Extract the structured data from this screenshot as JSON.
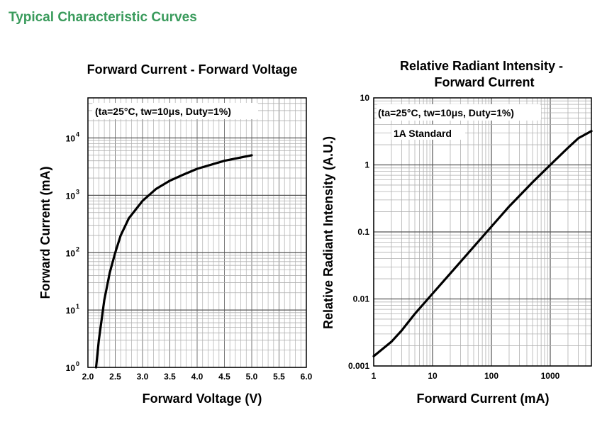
{
  "header": {
    "title": "Typical Characteristic Curves"
  },
  "chart_data": [
    {
      "type": "line",
      "title": "Forward Current - Forward Voltage",
      "xlabel": "Forward Voltage (V)",
      "ylabel": "Forward Current (mA)",
      "xscale": "linear",
      "yscale": "log",
      "xlim": [
        2.0,
        6.0
      ],
      "ylim": [
        1,
        50000
      ],
      "xticks": [
        "2.0",
        "2.5",
        "3.0",
        "3.5",
        "4.0",
        "4.5",
        "5.0",
        "5.5",
        "6.0"
      ],
      "yticks": [
        {
          "base": "10",
          "exp": "0",
          "value": 1
        },
        {
          "base": "10",
          "exp": "1",
          "value": 10
        },
        {
          "base": "10",
          "exp": "2",
          "value": 100
        },
        {
          "base": "10",
          "exp": "3",
          "value": 1000
        },
        {
          "base": "10",
          "exp": "4",
          "value": 10000
        }
      ],
      "annotation": "(ta=25°C, tw=10μs, Duty=1%)",
      "grid": true,
      "color": "#000000",
      "series": [
        {
          "x": [
            2.15,
            2.2,
            2.3,
            2.4,
            2.5,
            2.6,
            2.75,
            3.0,
            3.25,
            3.5,
            3.75,
            4.0,
            4.5,
            5.0
          ],
          "y": [
            1,
            3,
            15,
            45,
            100,
            200,
            400,
            800,
            1300,
            1800,
            2300,
            2900,
            4000,
            5000
          ]
        }
      ]
    },
    {
      "type": "line",
      "title": "Relative Radiant Intensity - Forward Current",
      "xlabel": "Forward Current (mA)",
      "ylabel": "Relative Radiant Intensity (A.U.)",
      "xscale": "log",
      "yscale": "log",
      "xlim": [
        1,
        5000
      ],
      "ylim": [
        0.001,
        10
      ],
      "xticks": [
        "1",
        "10",
        "100",
        "1000"
      ],
      "yticks": [
        "10",
        "1",
        "0.1",
        "0.01",
        "0.001"
      ],
      "annotation": "(ta=25°C, tw=10μs, Duty=1%)",
      "annotation2": "1A Standard",
      "grid": true,
      "color": "#000000",
      "series": [
        {
          "x": [
            1,
            2,
            3,
            5,
            10,
            20,
            50,
            100,
            200,
            500,
            1000,
            2000,
            3000,
            5000
          ],
          "y": [
            0.0014,
            0.0023,
            0.0034,
            0.006,
            0.012,
            0.024,
            0.06,
            0.12,
            0.24,
            0.55,
            1.0,
            1.8,
            2.5,
            3.2
          ]
        }
      ]
    }
  ]
}
